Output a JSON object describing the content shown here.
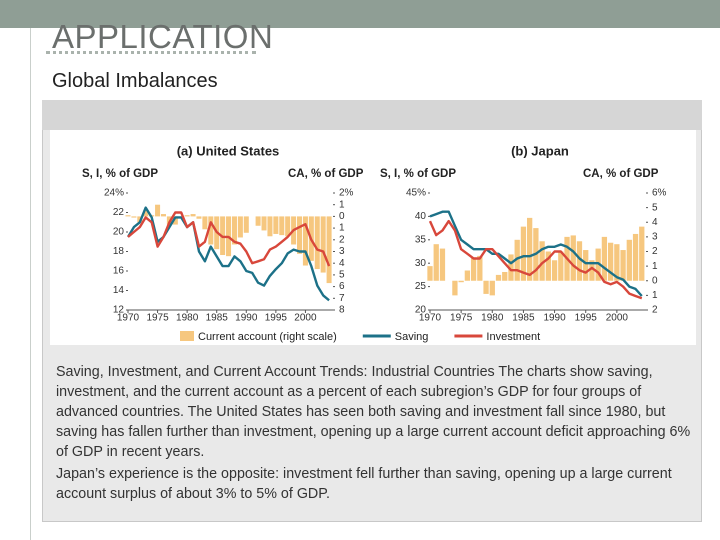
{
  "slide": {
    "title": "APPLICATION",
    "subtitle": "Global Imbalances",
    "caption": [
      "Saving, Investment, and Current Account Trends: Industrial Countries The charts show saving, investment, and the current account as a percent of each subregion’s GDP for four groups of advanced countries. The United States has seen both saving and investment fall since 1980, but saving has fallen further than investment, opening up a large current account deficit approaching 6% of GDP in recent years.",
      "Japan’s experience is the opposite: investment fell further than saving, opening up a large current account surplus of about 3% to 5% of GDP."
    ]
  },
  "chart_data": [
    {
      "type": "bar-line",
      "title": "(a) United States",
      "y_label": "S, I, % of GDP",
      "y2_label": "CA, % of GDP",
      "x": [
        1970,
        1971,
        1972,
        1973,
        1974,
        1975,
        1976,
        1977,
        1978,
        1979,
        1980,
        1981,
        1982,
        1983,
        1984,
        1985,
        1986,
        1987,
        1988,
        1989,
        1990,
        1991,
        1992,
        1993,
        1994,
        1995,
        1996,
        1997,
        1998,
        1999,
        2000,
        2001,
        2002,
        2003,
        2004
      ],
      "xlim": [
        1970,
        2005
      ],
      "xticks": [
        1970,
        1975,
        1980,
        1985,
        1990,
        1995,
        2000
      ],
      "ylim": [
        12,
        24
      ],
      "yticks": [
        12,
        14,
        16,
        18,
        20,
        22,
        {
          "value": 24,
          "label": "24%"
        }
      ],
      "y2lim": [
        -8,
        2
      ],
      "y2ticks": [
        {
          "value": 2,
          "label": "2%"
        },
        1,
        0,
        {
          "value": -1,
          "label": "1"
        },
        {
          "value": -2,
          "label": "2"
        },
        {
          "value": -3,
          "label": "3"
        },
        {
          "value": -4,
          "label": "4"
        },
        {
          "value": -5,
          "label": "5"
        },
        {
          "value": -6,
          "label": "6"
        },
        {
          "value": -7,
          "label": "7"
        },
        {
          "value": -8,
          "label": "8"
        }
      ],
      "series": [
        {
          "name": "Current account (right scale)",
          "kind": "bar",
          "axis": "y2",
          "color": "#f6c77f",
          "values": [
            0.1,
            -0.1,
            -0.5,
            0.5,
            0.1,
            1.0,
            0.2,
            -0.7,
            -0.7,
            0,
            0.1,
            0.2,
            -0.2,
            -1.1,
            -2.4,
            -2.8,
            -3.3,
            -3.4,
            -2.4,
            -1.8,
            -1.4,
            0,
            -0.8,
            -1.2,
            -1.7,
            -1.5,
            -1.6,
            -1.7,
            -2.4,
            -3.2,
            -4.2,
            -3.8,
            -4.5,
            -4.8,
            -5.7
          ]
        },
        {
          "name": "Saving",
          "kind": "line",
          "color": "#1c7188",
          "values": [
            19.5,
            20.5,
            21,
            22.5,
            21.5,
            19,
            19.5,
            20.5,
            21.5,
            21.5,
            20.5,
            21,
            18,
            17,
            18.5,
            17.5,
            16.5,
            16.5,
            17.5,
            17,
            16,
            15.8,
            14.8,
            14.5,
            15.5,
            16.2,
            16.8,
            17.8,
            18.2,
            18,
            18,
            16.5,
            14.5,
            13.5,
            13
          ]
        },
        {
          "name": "Investment",
          "kind": "line",
          "color": "#d8473b",
          "values": [
            19.5,
            20,
            20.5,
            21.5,
            21,
            18.5,
            19.5,
            21,
            22,
            22,
            20.5,
            21,
            18.5,
            19,
            21,
            20,
            19.5,
            19.5,
            19,
            18.8,
            18,
            16.8,
            17,
            17.2,
            18.2,
            18.5,
            19,
            19.5,
            20.2,
            20.5,
            20.8,
            19.2,
            18.2,
            18,
            16.5
          ]
        }
      ]
    },
    {
      "type": "bar-line",
      "title": "(b) Japan",
      "y_label": "S, I, % of GDP",
      "y2_label": "CA, % of GDP",
      "x": [
        1970,
        1971,
        1972,
        1973,
        1974,
        1975,
        1976,
        1977,
        1978,
        1979,
        1980,
        1981,
        1982,
        1983,
        1984,
        1985,
        1986,
        1987,
        1988,
        1989,
        1990,
        1991,
        1992,
        1993,
        1994,
        1995,
        1996,
        1997,
        1998,
        1999,
        2000,
        2001,
        2002,
        2003,
        2004
      ],
      "xlim": [
        1970,
        2005
      ],
      "xticks": [
        1970,
        1975,
        1980,
        1985,
        1990,
        1995,
        2000
      ],
      "ylim": [
        20,
        45
      ],
      "yticks": [
        20,
        25,
        30,
        35,
        40,
        {
          "value": 45,
          "label": "45%"
        }
      ],
      "y2lim": [
        -2,
        6
      ],
      "y2ticks": [
        {
          "value": 6,
          "label": "6%"
        },
        5,
        4,
        3,
        2,
        1,
        0,
        {
          "value": -1,
          "label": "1"
        },
        {
          "value": -2,
          "label": "2"
        }
      ],
      "series": [
        {
          "kind": "bar",
          "axis": "y2",
          "color": "#f6c77f",
          "values": [
            1,
            2.5,
            2.2,
            0,
            -1,
            -0.1,
            0.7,
            1.6,
            1.7,
            -0.9,
            -1,
            0.4,
            0.6,
            1.8,
            2.8,
            3.7,
            4.3,
            3.6,
            2.7,
            2,
            1.4,
            2,
            3,
            3.1,
            2.7,
            2.1,
            1.4,
            2.2,
            3,
            2.6,
            2.5,
            2.1,
            2.8,
            3.2,
            3.7
          ]
        },
        {
          "kind": "line",
          "color": "#1c7188",
          "values": [
            40,
            40.5,
            41,
            41,
            38,
            35,
            34,
            33,
            33,
            33,
            32,
            32,
            31,
            30,
            31,
            31.5,
            31.5,
            32,
            33,
            33.5,
            33.5,
            34,
            33.5,
            32.5,
            31,
            30,
            30,
            30,
            29,
            28,
            27,
            26.5,
            25,
            24.5,
            23
          ]
        },
        {
          "kind": "line",
          "color": "#d8473b",
          "values": [
            39,
            36,
            37,
            39,
            37,
            33,
            32,
            31,
            31,
            33,
            33,
            31.5,
            30,
            28.5,
            28.5,
            28,
            27.5,
            28.5,
            30,
            31,
            32.5,
            32.5,
            31,
            29.5,
            28.5,
            28,
            29,
            28,
            26,
            25.5,
            26,
            25,
            23.5,
            23,
            22.5
          ]
        }
      ]
    }
  ]
}
